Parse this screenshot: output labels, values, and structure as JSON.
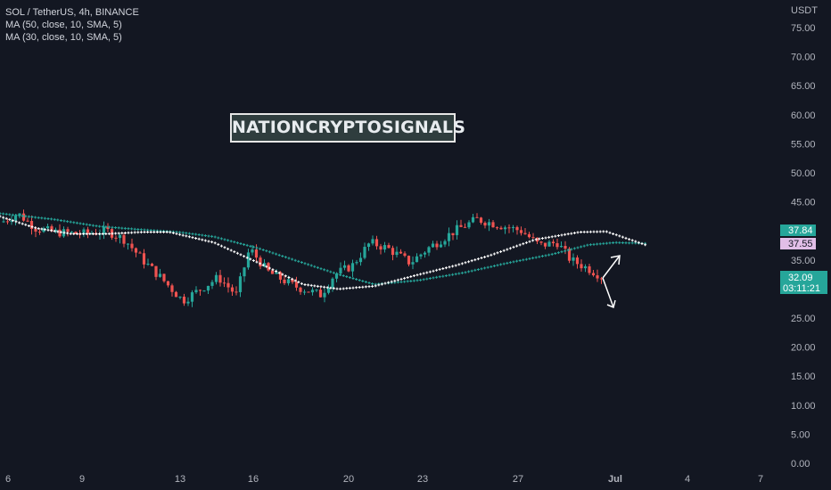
{
  "legend": {
    "symbol_line": "SOL / TetherUS, 4h, BINANCE",
    "ma1": "MA (50, close, 10, SMA, 5)",
    "ma2": "MA (30, close, 10, SMA, 5)"
  },
  "watermark": "NATIONCRYPTOSIGNALS",
  "price_axis": {
    "unit": "USDT",
    "ticks": [
      "75.00",
      "70.00",
      "65.00",
      "60.00",
      "55.00",
      "50.00",
      "45.00",
      "40.00",
      "35.00",
      "30.00",
      "25.00",
      "20.00",
      "15.00",
      "10.00",
      "5.00",
      "0.00"
    ]
  },
  "time_axis": {
    "labels": [
      "6",
      "9",
      "13",
      "16",
      "20",
      "23",
      "27",
      "Jul",
      "4",
      "7"
    ]
  },
  "price_tags": {
    "ma_green": "37.84",
    "ma_white": "37.55",
    "last_price": "32.09",
    "countdown": "03:11:21"
  },
  "colors": {
    "background": "#131722",
    "up": "#26a69a",
    "down": "#ef5350",
    "ma_green": "#26a69a",
    "ma_white": "#ffffff",
    "ma_white_tag": "#e1bee7"
  },
  "chart_data": {
    "type": "candlestick",
    "title": "SOL / TetherUS, 4h, BINANCE",
    "ylabel": "USDT",
    "ylim": [
      0,
      77
    ],
    "key_closes": [
      {
        "x": "6",
        "close": 41.5
      },
      {
        "x": "9",
        "close": 39.5
      },
      {
        "x": "13",
        "close": 27.5
      },
      {
        "x": "16",
        "close": 33.5
      },
      {
        "x": "20",
        "close": 33.0
      },
      {
        "x": "23",
        "close": 36.0
      },
      {
        "x": "26",
        "close": 42.0
      },
      {
        "x": "27",
        "close": 39.5
      },
      {
        "x": "Jul",
        "close": 32.09
      }
    ],
    "series": [
      {
        "name": "MA (50, close, 10, SMA, 5)",
        "last": 37.84
      },
      {
        "name": "MA (30, close, 10, SMA, 5)",
        "last": 37.55
      }
    ],
    "last_price": 32.09,
    "projection": {
      "up_target": 36.0,
      "down_target": 27.5
    }
  }
}
